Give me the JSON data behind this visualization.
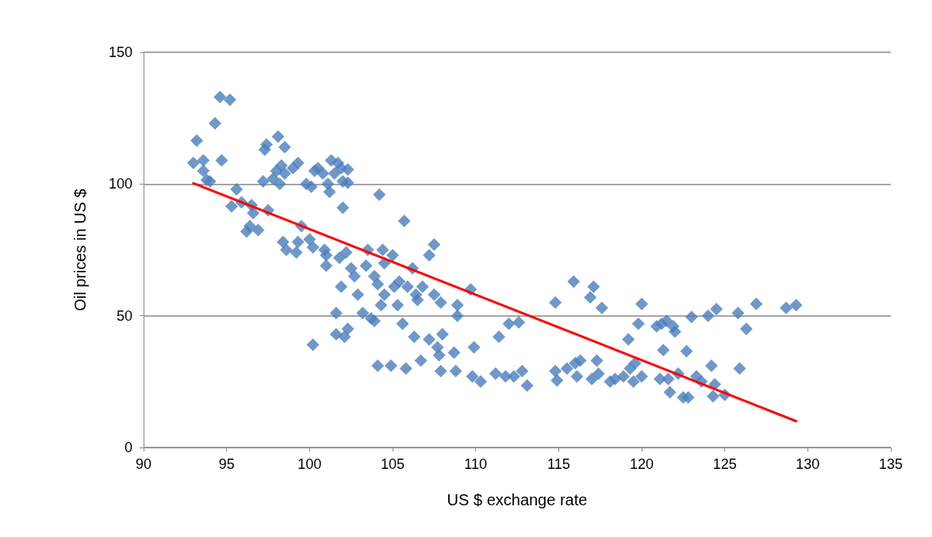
{
  "chart_data": {
    "type": "scatter",
    "xlabel": "US $ exchange rate",
    "ylabel": "Oil prices in US $",
    "xlim": [
      90,
      135
    ],
    "xticks": [
      90,
      95,
      100,
      105,
      110,
      115,
      120,
      125,
      130,
      135
    ],
    "ylim": [
      0,
      150
    ],
    "yticks": [
      0,
      50,
      100,
      150
    ],
    "grid": "y",
    "marker": "diamond",
    "series": [
      {
        "color": "#4a7ebb",
        "x": [
          93.0,
          93.2,
          93.6,
          93.6,
          93.8,
          94.0,
          94.3,
          94.6,
          94.7,
          95.2,
          95.3,
          95.6,
          95.9,
          96.2,
          96.4,
          96.6,
          96.5,
          96.9,
          97.2,
          97.3,
          97.4,
          97.5,
          97.8,
          98.0,
          98.1,
          98.2,
          98.3,
          98.5,
          98.5,
          98.4,
          98.6,
          99.0,
          99.2,
          99.3,
          99.3,
          99.5,
          99.8,
          100.0,
          100.1,
          100.2,
          100.3,
          100.5,
          100.2,
          100.8,
          100.9,
          101.0,
          101.0,
          101.1,
          101.2,
          101.3,
          101.5,
          101.6,
          101.6,
          101.7,
          101.8,
          101.9,
          101.9,
          102.0,
          102.0,
          102.1,
          102.2,
          102.3,
          102.3,
          102.3,
          102.5,
          102.7,
          102.9,
          103.2,
          103.4,
          103.5,
          103.7,
          103.9,
          103.9,
          104.1,
          104.1,
          104.2,
          104.3,
          104.5,
          104.4,
          104.5,
          104.9,
          105.0,
          105.1,
          105.3,
          105.4,
          105.6,
          105.7,
          105.8,
          105.9,
          106.2,
          106.3,
          106.4,
          106.5,
          106.7,
          106.8,
          107.2,
          107.2,
          107.5,
          107.5,
          107.7,
          107.8,
          107.9,
          108.0,
          107.9,
          108.7,
          108.8,
          108.9,
          108.9,
          109.7,
          109.8,
          109.9,
          110.3,
          111.2,
          111.4,
          111.8,
          112.0,
          112.3,
          112.6,
          112.8,
          113.1,
          114.8,
          114.8,
          114.9,
          115.5,
          115.9,
          116.0,
          116.1,
          116.3,
          116.9,
          117.0,
          117.1,
          117.3,
          117.4,
          117.6,
          118.1,
          118.4,
          118.9,
          119.2,
          119.3,
          119.5,
          119.6,
          119.8,
          120.0,
          120.0,
          120.9,
          121.1,
          121.2,
          121.3,
          121.5,
          121.6,
          121.7,
          121.9,
          122.0,
          122.2,
          122.5,
          122.7,
          122.8,
          123.0,
          123.3,
          123.6,
          124.0,
          124.2,
          124.3,
          124.4,
          124.5,
          125.0,
          125.8,
          125.9,
          126.3,
          126.9,
          128.7,
          129.3
        ],
        "values": [
          108,
          116.5,
          109,
          105,
          101.5,
          101,
          123,
          133,
          109,
          132,
          91.5,
          98,
          93,
          82,
          84,
          89,
          92,
          82.5,
          101,
          113,
          115,
          90,
          102,
          105,
          118,
          100,
          107,
          114,
          104,
          78,
          75,
          106,
          74,
          108,
          78,
          84,
          100,
          79,
          99,
          76,
          105,
          106,
          39,
          104,
          75,
          69,
          73,
          100,
          97,
          109,
          104,
          51,
          43,
          108,
          72,
          106,
          61,
          91,
          101,
          42,
          74,
          45,
          105.5,
          100.5,
          68,
          65,
          58,
          51,
          69,
          75,
          49,
          48,
          65,
          62,
          31,
          96,
          54,
          58,
          75,
          70,
          31,
          73,
          61,
          54,
          63,
          47,
          86,
          30,
          61,
          68,
          42,
          58,
          56,
          33,
          61,
          41,
          73,
          77,
          58,
          38,
          35,
          29,
          43,
          55,
          36,
          29,
          50,
          54,
          60,
          27,
          38,
          25,
          28,
          42,
          27,
          47,
          27,
          47.5,
          29,
          23.5,
          55,
          29,
          25.5,
          30,
          63,
          32,
          27,
          33,
          57,
          26,
          61,
          33,
          28,
          53,
          25,
          26,
          27,
          41,
          30,
          25,
          32,
          47,
          27,
          54.5,
          46,
          26,
          47,
          37,
          48,
          26,
          21,
          46,
          44,
          28,
          19,
          36.5,
          19,
          49.5,
          27,
          25,
          50,
          31,
          19.5,
          24,
          52.5,
          20,
          51,
          30,
          45,
          54.5,
          53,
          54
        ]
      },
      {
        "type": "line",
        "color": "#ff0000",
        "marker": "none",
        "x": [
          93,
          129.3
        ],
        "values": [
          100.3,
          10
        ]
      }
    ]
  }
}
